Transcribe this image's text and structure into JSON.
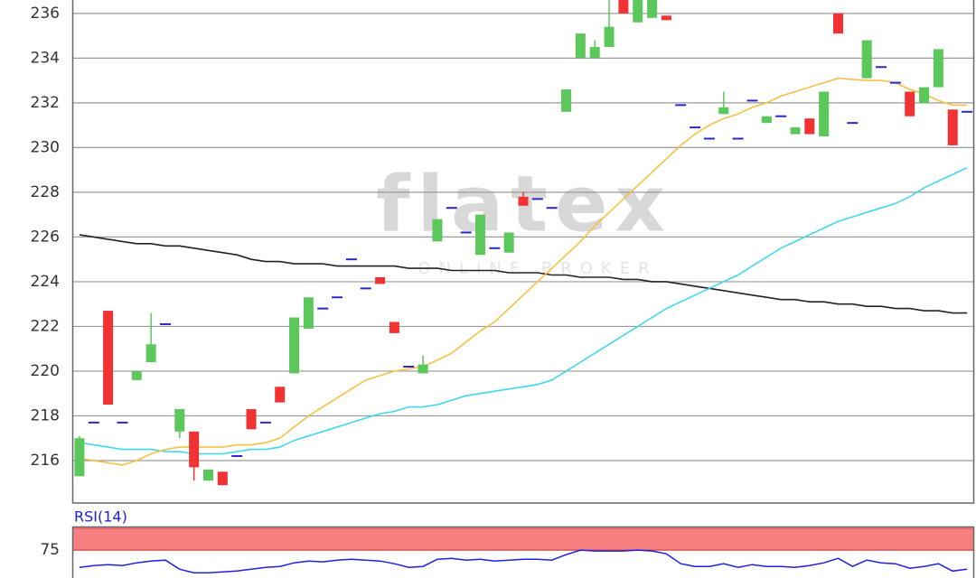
{
  "watermark": {
    "brand": "flatex",
    "tagline": "ONLINE BROKER"
  },
  "chart_data": [
    {
      "type": "candlestick",
      "open": [
        215.3,
        217.7,
        222.7,
        217.7,
        219.6,
        220.4,
        222.1,
        217.3,
        217.3,
        215.1,
        215.5,
        216.2,
        218.3,
        217.7,
        219.3,
        219.9,
        221.9,
        222.8,
        223.3,
        225.0,
        223.7,
        224.2,
        222.2,
        220.2,
        219.9,
        225.8,
        227.3,
        226.2,
        225.2,
        225.5,
        225.3,
        227.8,
        227.7,
        227.3,
        231.6,
        234.0,
        234.0,
        234.5,
        236.6,
        235.6,
        235.8,
        235.9,
        231.9,
        230.9,
        230.4,
        231.5,
        230.4,
        232.1,
        231.1,
        231.4,
        230.6,
        231.3,
        230.5,
        236.0,
        231.1,
        233.1,
        233.6,
        232.9,
        232.5,
        232.0,
        232.7,
        231.7,
        231.6
      ],
      "high": [
        217.1,
        217.7,
        222.7,
        217.7,
        220.0,
        222.6,
        222.1,
        218.3,
        217.3,
        215.6,
        215.5,
        216.2,
        218.3,
        217.7,
        219.3,
        222.4,
        223.3,
        222.8,
        223.3,
        225.0,
        223.7,
        224.2,
        222.2,
        220.2,
        220.7,
        226.8,
        227.3,
        226.2,
        227.0,
        225.5,
        226.2,
        228.0,
        227.7,
        227.3,
        232.6,
        235.1,
        234.8,
        236.6,
        236.6,
        236.6,
        236.6,
        235.9,
        231.9,
        230.9,
        230.4,
        232.5,
        230.4,
        232.1,
        231.4,
        231.4,
        230.9,
        231.3,
        232.5,
        236.0,
        231.1,
        234.8,
        233.6,
        232.9,
        232.5,
        232.7,
        234.4,
        231.7,
        231.6
      ],
      "low": [
        215.3,
        217.7,
        218.5,
        217.7,
        219.6,
        220.4,
        222.1,
        217.0,
        215.1,
        215.1,
        214.9,
        216.2,
        217.4,
        217.7,
        218.6,
        219.9,
        221.9,
        222.8,
        223.3,
        225.0,
        223.7,
        223.9,
        221.7,
        220.2,
        219.9,
        225.8,
        227.3,
        226.2,
        225.2,
        225.5,
        225.3,
        227.4,
        227.7,
        227.3,
        231.6,
        234.0,
        234.0,
        234.5,
        236.0,
        235.6,
        235.8,
        235.7,
        231.9,
        230.9,
        230.4,
        231.5,
        230.4,
        232.1,
        231.1,
        231.4,
        230.6,
        230.6,
        230.5,
        235.1,
        231.1,
        233.1,
        233.6,
        232.9,
        231.4,
        232.0,
        232.7,
        230.1,
        231.6
      ],
      "close": [
        217.0,
        217.7,
        218.5,
        217.7,
        220.0,
        221.2,
        222.1,
        218.3,
        215.7,
        215.6,
        214.9,
        216.2,
        217.4,
        217.7,
        218.6,
        222.4,
        223.3,
        222.8,
        223.3,
        225.0,
        223.7,
        223.9,
        221.7,
        220.2,
        220.3,
        226.8,
        227.3,
        226.2,
        227.0,
        225.5,
        226.2,
        227.4,
        227.7,
        227.3,
        232.6,
        235.1,
        234.5,
        235.4,
        236.0,
        236.6,
        236.6,
        235.7,
        231.9,
        230.9,
        230.4,
        231.8,
        230.4,
        232.1,
        231.4,
        231.4,
        230.9,
        230.6,
        232.5,
        235.1,
        231.1,
        234.8,
        233.6,
        232.9,
        231.4,
        232.7,
        234.4,
        230.1,
        231.6
      ],
      "up_color": "#5cc85c",
      "down_color": "#f03232",
      "flat_color": "#2828c8",
      "overlays": [
        {
          "color": "#222222",
          "values": [
            226.1,
            226.0,
            225.9,
            225.8,
            225.7,
            225.7,
            225.6,
            225.6,
            225.5,
            225.4,
            225.3,
            225.2,
            225.0,
            224.9,
            224.9,
            224.8,
            224.8,
            224.8,
            224.7,
            224.7,
            224.7,
            224.7,
            224.7,
            224.6,
            224.6,
            224.6,
            224.5,
            224.5,
            224.5,
            224.5,
            224.4,
            224.4,
            224.4,
            224.3,
            224.3,
            224.2,
            224.2,
            224.2,
            224.1,
            224.1,
            224.0,
            224.0,
            223.9,
            223.8,
            223.7,
            223.6,
            223.5,
            223.4,
            223.3,
            223.2,
            223.2,
            223.1,
            223.1,
            223.0,
            223.0,
            222.9,
            222.9,
            222.8,
            222.8,
            222.7,
            222.7,
            222.6,
            222.6
          ]
        },
        {
          "color": "#40d8f0",
          "values": [
            216.8,
            216.7,
            216.6,
            216.5,
            216.5,
            216.5,
            216.4,
            216.4,
            216.3,
            216.3,
            216.3,
            216.4,
            216.5,
            216.5,
            216.6,
            216.9,
            217.1,
            217.3,
            217.5,
            217.7,
            217.9,
            218.1,
            218.2,
            218.4,
            218.4,
            218.5,
            218.7,
            218.9,
            219.0,
            219.1,
            219.2,
            219.3,
            219.4,
            219.6,
            220.0,
            220.4,
            220.8,
            221.2,
            221.6,
            222.0,
            222.4,
            222.8,
            223.1,
            223.4,
            223.7,
            224.0,
            224.3,
            224.7,
            225.1,
            225.5,
            225.8,
            226.1,
            226.4,
            226.7,
            226.9,
            227.1,
            227.3,
            227.5,
            227.8,
            228.2,
            228.5,
            228.8,
            229.1
          ]
        },
        {
          "color": "#f8c040",
          "values": [
            216.1,
            216.0,
            215.9,
            215.8,
            216.0,
            216.3,
            216.5,
            216.6,
            216.6,
            216.6,
            216.6,
            216.7,
            216.7,
            216.8,
            217.0,
            217.5,
            218.0,
            218.4,
            218.8,
            219.2,
            219.6,
            219.8,
            220.0,
            220.1,
            220.2,
            220.5,
            220.8,
            221.3,
            221.8,
            222.2,
            222.8,
            223.4,
            224.0,
            224.6,
            225.2,
            225.8,
            226.5,
            227.1,
            227.7,
            228.3,
            228.9,
            229.5,
            230.1,
            230.6,
            231.0,
            231.3,
            231.5,
            231.8,
            232.0,
            232.3,
            232.5,
            232.7,
            232.9,
            233.1,
            233.05,
            233.0,
            233.0,
            232.9,
            232.6,
            232.4,
            232.1,
            231.9,
            231.9
          ]
        }
      ],
      "ylim": [
        214.1,
        236.6
      ],
      "yticks": [
        216,
        218,
        220,
        222,
        224,
        226,
        228,
        230,
        232,
        234,
        236
      ],
      "grid": true
    },
    {
      "type": "line",
      "title": "RSI(14)",
      "color": "#2020e0",
      "values": [
        55.2,
        57.3,
        58.3,
        57.3,
        60.4,
        62.5,
        63.5,
        53.1,
        49.0,
        49.0,
        50.0,
        51.0,
        53.1,
        55.2,
        56.3,
        60.4,
        62.5,
        61.5,
        63.5,
        64.6,
        63.5,
        62.5,
        59.4,
        55.2,
        56.3,
        64.6,
        65.6,
        63.5,
        64.6,
        62.5,
        63.5,
        64.6,
        64.6,
        63.5,
        69.8,
        75.0,
        74.0,
        74.0,
        74.0,
        75.0,
        74.0,
        70.8,
        59.4,
        56.3,
        56.3,
        59.4,
        55.2,
        58.3,
        56.3,
        56.3,
        55.2,
        57.3,
        60.4,
        65.6,
        56.3,
        63.5,
        60.4,
        59.4,
        54.2,
        56.3,
        59.4,
        51.0,
        53.1
      ],
      "band": [
        75,
        100
      ],
      "band_color": "#f88080",
      "ylim": [
        43,
        100
      ],
      "yticks": [
        75
      ]
    }
  ]
}
